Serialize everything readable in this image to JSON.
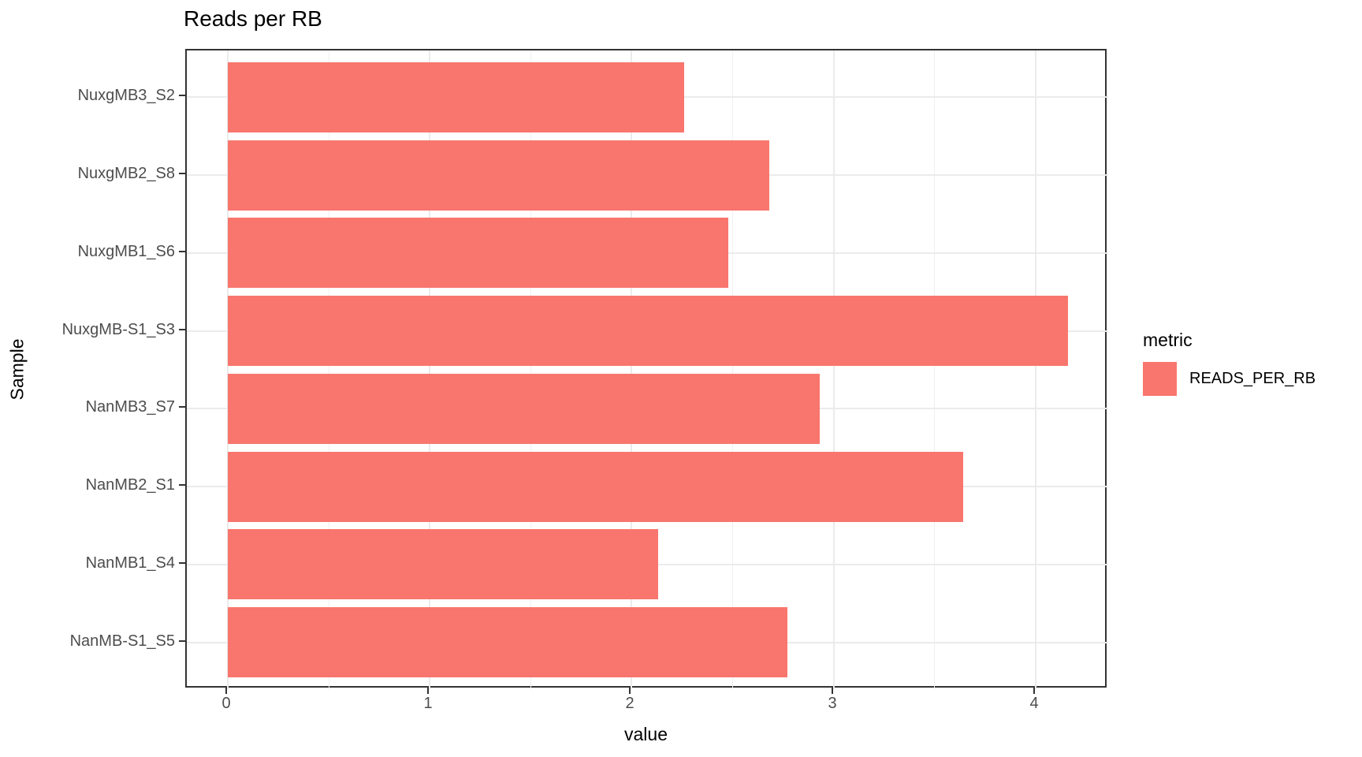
{
  "title": "Reads per RB",
  "chart_data": {
    "type": "bar",
    "orientation": "horizontal",
    "title": "Reads per RB",
    "xlabel": "value",
    "ylabel": "Sample",
    "categories_top_to_bottom": [
      "NuxgMB3_S2",
      "NuxgMB2_S8",
      "NuxgMB1_S6",
      "NuxgMB-S1_S3",
      "NanMB3_S7",
      "NanMB2_S1",
      "NanMB1_S4",
      "NanMB-S1_S5"
    ],
    "series": [
      {
        "name": "READS_PER_RB",
        "values": [
          2.26,
          2.68,
          2.48,
          4.16,
          2.93,
          3.64,
          2.13,
          2.77
        ]
      }
    ],
    "xlim": [
      0,
      4.37
    ],
    "x_ticks": [
      0,
      1,
      2,
      3,
      4
    ],
    "x_minor_ticks": [
      0.5,
      1.5,
      2.5,
      3.5
    ],
    "grid": true,
    "legend": {
      "title": "metric",
      "position": "right",
      "entries": [
        {
          "label": "READS_PER_RB",
          "color": "#F8766D"
        }
      ]
    },
    "colors": {
      "bar": "#F8766D",
      "grid_major": "#ebebeb",
      "grid_minor": "#f0f0f0",
      "panel_border": "#333333",
      "tick_label": "#4d4d4d",
      "text": "#000000"
    }
  }
}
